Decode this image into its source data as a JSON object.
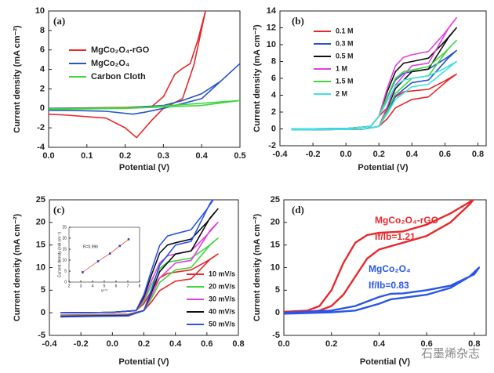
{
  "chart_data": [
    {
      "type": "line",
      "panel_label": "(a)",
      "xlabel": "Potential (V)",
      "ylabel": "Current density (mA cm⁻²)",
      "xlim": [
        0,
        0.5
      ],
      "ylim": [
        -4,
        10
      ],
      "xticks": [
        {
          "value": 0,
          "label": "0.0"
        },
        0.1,
        0.2,
        0.3,
        0.4,
        0.5
      ],
      "yticks": [
        -4,
        -2,
        0,
        2,
        4,
        6,
        8,
        10
      ],
      "legend": "upper left",
      "series": [
        {
          "name": "MgCo₂O₄-rGO",
          "color": "#e8282b",
          "x": [
            0,
            0.1,
            0.2,
            0.27,
            0.3,
            0.33,
            0.35,
            0.37,
            0.39,
            0.41,
            0.38,
            0.35,
            0.3,
            0.27,
            0.23,
            0.2,
            0.15,
            0.05,
            0
          ],
          "values": [
            0,
            0.05,
            0.1,
            0.2,
            1.2,
            3.5,
            4.1,
            4.6,
            7,
            10,
            4.5,
            1,
            0,
            -1.2,
            -3,
            -2,
            -1,
            -0.7,
            -0.6
          ]
        },
        {
          "name": "MgCo₂O₄",
          "color": "#2a55c8",
          "x": [
            0,
            0.2,
            0.3,
            0.35,
            0.4,
            0.45,
            0.5,
            0.4,
            0.35,
            0.3,
            0.25,
            0.22,
            0.15,
            0.05,
            0
          ],
          "values": [
            0,
            0.05,
            0.3,
            0.8,
            1.5,
            2.8,
            4.6,
            1,
            0.5,
            0,
            -0.4,
            -0.6,
            -0.3,
            -0.2,
            -0.2
          ]
        },
        {
          "name": "Carbon Cloth",
          "color": "#3fd63f",
          "x": [
            0,
            0.25,
            0.5,
            0.4,
            0.2,
            0
          ],
          "values": [
            -0.05,
            0.1,
            0.8,
            0.3,
            0,
            -0.1
          ]
        }
      ]
    },
    {
      "type": "line",
      "panel_label": "(b)",
      "xlabel": "Potential (V)",
      "ylabel": "Current density (mA cm⁻²)",
      "xlim": [
        -0.4,
        0.85
      ],
      "ylim": [
        -2,
        14
      ],
      "xticks": [
        -0.4,
        -0.2,
        {
          "value": 0,
          "label": "0.0"
        },
        0.2,
        0.4,
        0.6,
        0.8
      ],
      "yticks": [
        -2,
        0,
        2,
        4,
        6,
        8,
        10,
        12,
        14
      ],
      "legend": "upper left",
      "series": [
        {
          "name": "0.1 M",
          "color": "#e8282b",
          "x": [
            -0.33,
            0,
            0.15,
            0.2,
            0.25,
            0.3,
            0.35,
            0.4,
            0.5,
            0.6,
            0.67,
            0.62,
            0.5,
            0.4,
            0.3,
            0.25,
            0.2,
            0.1,
            -0.33
          ],
          "values": [
            0,
            0.05,
            0.3,
            1.5,
            2.5,
            3.8,
            4.4,
            4.5,
            4.7,
            5.7,
            6.5,
            5.8,
            3.8,
            3.5,
            2.5,
            1.2,
            0.3,
            -0.05,
            -0.1
          ]
        },
        {
          "name": "0.3 M",
          "color": "#2a55c8",
          "x": [
            -0.33,
            0,
            0.15,
            0.2,
            0.25,
            0.3,
            0.35,
            0.4,
            0.5,
            0.6,
            0.67,
            0.62,
            0.5,
            0.4,
            0.3,
            0.25,
            0.2,
            0.1,
            -0.33
          ],
          "values": [
            0,
            0.05,
            0.3,
            1.5,
            3.7,
            5.8,
            6.6,
            6.8,
            7.1,
            8.3,
            9.3,
            8.4,
            5.8,
            5.5,
            3.9,
            1.9,
            0.3,
            -0.05,
            -0.1
          ]
        },
        {
          "name": "0.5 M",
          "color": "#111111",
          "x": [
            -0.33,
            0,
            0.15,
            0.2,
            0.25,
            0.3,
            0.35,
            0.4,
            0.5,
            0.6,
            0.67,
            0.62,
            0.5,
            0.4,
            0.3,
            0.25,
            0.2,
            0.1,
            -0.33
          ],
          "values": [
            0,
            0.05,
            0.3,
            1.5,
            4.4,
            6.8,
            7.8,
            8,
            8.4,
            10.4,
            12,
            10.8,
            7.1,
            6.8,
            4.8,
            2.4,
            0.3,
            -0.05,
            -0.1
          ]
        },
        {
          "name": "1 M",
          "color": "#e040e0",
          "x": [
            -0.33,
            0,
            0.15,
            0.2,
            0.25,
            0.3,
            0.35,
            0.4,
            0.5,
            0.6,
            0.67,
            0.62,
            0.5,
            0.4,
            0.3,
            0.25,
            0.2,
            0.1,
            -0.33
          ],
          "values": [
            0,
            0.05,
            0.3,
            1.5,
            4.8,
            7.5,
            8.5,
            8.8,
            9.2,
            11.4,
            13.2,
            11.9,
            7.8,
            7.5,
            5.2,
            2.6,
            0.3,
            -0.05,
            -0.1
          ]
        },
        {
          "name": "1.5 M",
          "color": "#3fd63f",
          "x": [
            -0.33,
            0,
            0.15,
            0.2,
            0.25,
            0.3,
            0.35,
            0.4,
            0.5,
            0.6,
            0.67,
            0.62,
            0.5,
            0.4,
            0.3,
            0.25,
            0.2,
            0.1,
            -0.33
          ],
          "values": [
            0,
            0.05,
            0.3,
            1.5,
            3.8,
            6,
            6.8,
            7,
            7.4,
            9.1,
            10.5,
            9.5,
            6.3,
            6,
            4.2,
            2.1,
            0.3,
            -0.05,
            -0.1
          ]
        },
        {
          "name": "2 M",
          "color": "#40e0e8",
          "x": [
            -0.33,
            0,
            0.15,
            0.2,
            0.25,
            0.3,
            0.35,
            0.4,
            0.5,
            0.6,
            0.67,
            0.62,
            0.5,
            0.4,
            0.3,
            0.25,
            0.2,
            0.1,
            -0.33
          ],
          "values": [
            0,
            0.05,
            0.3,
            1.5,
            3.3,
            5.1,
            5.8,
            6,
            6.3,
            7.2,
            8,
            7.2,
            5.3,
            5,
            3.5,
            1.8,
            0.3,
            -0.05,
            -0.1
          ]
        }
      ]
    },
    {
      "type": "line",
      "panel_label": "(c)",
      "xlabel": "Potential (V)",
      "ylabel": "Current density (mA cm⁻²)",
      "xlim": [
        -0.4,
        0.8
      ],
      "ylim": [
        -5,
        25
      ],
      "xticks": [
        -0.4,
        -0.2,
        {
          "value": 0,
          "label": "0.0"
        },
        0.2,
        0.4,
        0.6,
        0.8
      ],
      "yticks": [
        -5,
        0,
        5,
        10,
        15,
        20,
        25
      ],
      "legend": "lower right",
      "series": [
        {
          "name": "10 mV/s",
          "color": "#e8282b",
          "x": [
            -0.33,
            0,
            0.15,
            0.2,
            0.25,
            0.3,
            0.35,
            0.4,
            0.5,
            0.6,
            0.67,
            0.62,
            0.5,
            0.4,
            0.3,
            0.25,
            0.2,
            0.1,
            -0.33
          ],
          "values": [
            0,
            0.1,
            0.5,
            2,
            5,
            7.7,
            8.7,
            9,
            9.5,
            11.4,
            13,
            11.8,
            7.5,
            7,
            4.9,
            2.5,
            0.5,
            -0.3,
            -0.5
          ]
        },
        {
          "name": "20 mV/s",
          "color": "#3fd63f",
          "x": [
            -0.33,
            0,
            0.15,
            0.2,
            0.25,
            0.3,
            0.35,
            0.4,
            0.5,
            0.6,
            0.67,
            0.62,
            0.5,
            0.4,
            0.3,
            0.25,
            0.2,
            0.1,
            -0.33
          ],
          "values": [
            0,
            0.1,
            0.5,
            2.5,
            6.3,
            9.8,
            11.2,
            11.5,
            12.1,
            14.5,
            16.5,
            15,
            10,
            9.5,
            6.7,
            3.3,
            0.5,
            -0.4,
            -0.6
          ]
        },
        {
          "name": "30 mV/s",
          "color": "#e040e0",
          "x": [
            -0.33,
            0,
            0.15,
            0.2,
            0.25,
            0.3,
            0.35,
            0.4,
            0.5,
            0.6,
            0.67,
            0.62,
            0.5,
            0.4,
            0.3,
            0.25,
            0.2,
            0.1,
            -0.33
          ],
          "values": [
            0,
            0.1,
            0.5,
            3,
            7.2,
            11,
            12.6,
            13,
            13.7,
            17.2,
            20,
            18.2,
            11.6,
            11,
            7.7,
            3.9,
            0.5,
            -0.5,
            -0.7
          ]
        },
        {
          "name": "40 mV/s",
          "color": "#111111",
          "x": [
            -0.33,
            0,
            0.15,
            0.2,
            0.25,
            0.3,
            0.35,
            0.4,
            0.5,
            0.6,
            0.67,
            0.62,
            0.5,
            0.4,
            0.3,
            0.25,
            0.2,
            0.1,
            -0.33
          ],
          "values": [
            0,
            0.1,
            0.5,
            3.5,
            8.5,
            13.2,
            15,
            15.5,
            16.3,
            20,
            23,
            21,
            13.7,
            13,
            9.1,
            4.6,
            0.5,
            -0.6,
            -0.8
          ]
        },
        {
          "name": "50 mV/s",
          "color": "#2a55e8",
          "x": [
            -0.33,
            0,
            0.15,
            0.2,
            0.25,
            0.3,
            0.35,
            0.4,
            0.5,
            0.6,
            0.67,
            0.62,
            0.5,
            0.4,
            0.3,
            0.25,
            0.2,
            0.1,
            -0.33
          ],
          "values": [
            0,
            0.1,
            0.5,
            4,
            9.6,
            14.9,
            17,
            17.5,
            18.4,
            22.9,
            26.5,
            24.2,
            15.8,
            15,
            10.5,
            5.3,
            0.5,
            -0.7,
            -0.9
          ]
        }
      ]
    },
    {
      "type": "line",
      "panel_label": "(d)",
      "xlabel": "Potential (V)",
      "ylabel": "Current density (mA cm⁻²)",
      "xlim": [
        0,
        0.85
      ],
      "ylim": [
        -5,
        25
      ],
      "xticks": [
        {
          "value": 0,
          "label": "0.0"
        },
        0.2,
        0.4,
        0.6,
        0.8
      ],
      "yticks": [
        -5,
        0,
        5,
        10,
        15,
        20,
        25
      ],
      "annotations": [
        {
          "text": "MgCo₂O₄-rGO",
          "color": "#e8282b"
        },
        {
          "text": "If/Ib=1.21",
          "color": "#e8282b"
        },
        {
          "text": "MgCo₂O₄",
          "color": "#2a55e8"
        },
        {
          "text": "If/Ib=0.83",
          "color": "#2a55e8"
        }
      ],
      "series": [
        {
          "color": "#e8282b",
          "x": [
            0,
            0.1,
            0.15,
            0.2,
            0.25,
            0.3,
            0.35,
            0.4,
            0.5,
            0.6,
            0.7,
            0.78,
            0.82,
            0.78,
            0.7,
            0.6,
            0.5,
            0.4,
            0.35,
            0.3,
            0.25,
            0.2,
            0.15,
            0.1,
            0
          ],
          "values": [
            0.2,
            0.5,
            1.5,
            5,
            11,
            15.5,
            17.2,
            17.7,
            18,
            19.5,
            22,
            24.5,
            26.5,
            24,
            20,
            17,
            15.5,
            14,
            12,
            8,
            4,
            1.5,
            0.5,
            0.2,
            0.1
          ]
        },
        {
          "color": "#2a55e8",
          "x": [
            0,
            0.2,
            0.3,
            0.4,
            0.45,
            0.5,
            0.6,
            0.7,
            0.8,
            0.82,
            0.78,
            0.7,
            0.6,
            0.5,
            0.45,
            0.4,
            0.3,
            0.2,
            0
          ],
          "values": [
            0,
            0.5,
            1.5,
            3.5,
            4.2,
            4.3,
            5,
            6,
            8.5,
            10,
            8,
            5.5,
            4,
            3.3,
            3,
            2,
            0.5,
            0.1,
            -0.2
          ]
        }
      ]
    },
    {
      "type": "scatter",
      "inset": true,
      "annotation": "R=0.996",
      "xlabel": "v¹ᐟ²",
      "ylabel": "Current density (mA cm⁻²)",
      "xlim": [
        2,
        8
      ],
      "ylim": [
        0,
        25
      ],
      "xticks": [
        2,
        3,
        4,
        5,
        6,
        7,
        8
      ],
      "yticks": [
        0,
        5,
        10,
        15,
        20,
        25
      ],
      "color": "#3040c0",
      "line_color": "#e8282b",
      "x": [
        3.16,
        4.47,
        5.48,
        6.32,
        7.07
      ],
      "values": [
        4.5,
        9.5,
        13,
        16.5,
        19.5
      ]
    }
  ],
  "watermark": "石墨烯杂志"
}
